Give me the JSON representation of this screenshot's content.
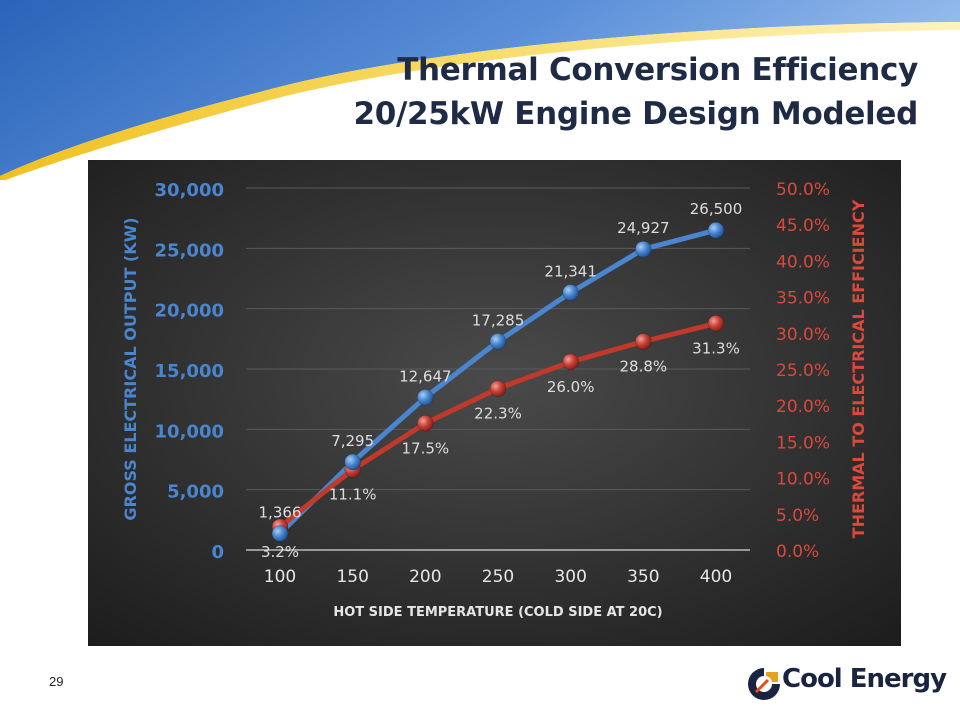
{
  "slide": {
    "title_line1": "Thermal Conversion Efficiency",
    "title_line2": "20/25kW Engine Design Modeled",
    "page_number": "29",
    "logo_text": "Cool Energy"
  },
  "colors": {
    "title": "#1f2a44",
    "output_series": "#4a86d0",
    "efficiency_series": "#c0392b",
    "left_axis": "#4a86d0",
    "right_axis": "#d94a3d",
    "plot_bg": "#2e2e2e"
  },
  "chart_data": {
    "type": "line",
    "title": "",
    "xlabel": "HOT SIDE TEMPERATURE (COLD SIDE AT 20C)",
    "ylabel": "GROSS ELECTRICAL OUTPUT (KW)",
    "y2label": "THERMAL TO ELECTRICAL EFFICIENCY",
    "x": [
      100,
      150,
      200,
      250,
      300,
      350,
      400
    ],
    "x_tick_labels": [
      "100",
      "150",
      "200",
      "250",
      "300",
      "350",
      "400"
    ],
    "ylim": [
      0,
      30000
    ],
    "y_ticks": [
      0,
      5000,
      10000,
      15000,
      20000,
      25000,
      30000
    ],
    "y_tick_labels": [
      "0",
      "5,000",
      "10,000",
      "15,000",
      "20,000",
      "25,000",
      "30,000"
    ],
    "y2lim": [
      0,
      50
    ],
    "y2_ticks": [
      0,
      5,
      10,
      15,
      20,
      25,
      30,
      35,
      40,
      45,
      50
    ],
    "y2_tick_labels": [
      "0.0%",
      "5.0%",
      "10.0%",
      "15.0%",
      "20.0%",
      "25.0%",
      "30.0%",
      "35.0%",
      "40.0%",
      "45.0%",
      "50.0%"
    ],
    "grid": true,
    "legend": "none",
    "series": [
      {
        "axis": "left",
        "values": [
          1366,
          7295,
          12647,
          17285,
          21341,
          24927,
          26500
        ],
        "labels": [
          "1,366",
          "7,295",
          "12,647",
          "17,285",
          "21,341",
          "24,927",
          "26,500"
        ],
        "label_position": "above"
      },
      {
        "axis": "right",
        "values": [
          3.2,
          11.1,
          17.5,
          22.3,
          26.0,
          28.8,
          31.3
        ],
        "labels": [
          "3.2%",
          "11.1%",
          "17.5%",
          "22.3%",
          "26.0%",
          "28.8%",
          "31.3%"
        ],
        "label_position": "below"
      }
    ]
  }
}
